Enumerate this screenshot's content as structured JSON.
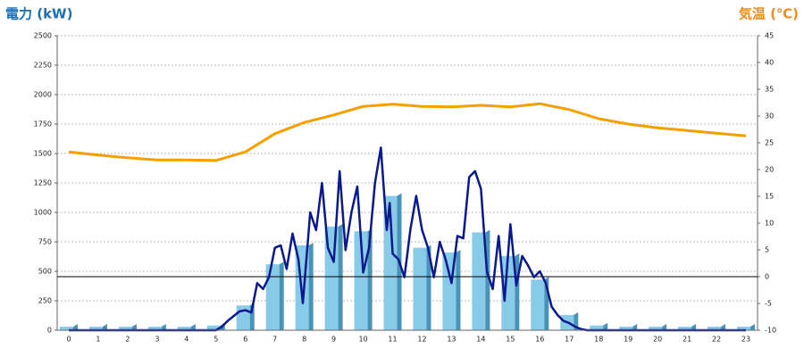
{
  "chart_data": {
    "type": "bar",
    "y_label": "電力 (kW)",
    "y2_label": "気温 (℃)",
    "categories": [
      "0",
      "1",
      "2",
      "3",
      "4",
      "5",
      "6",
      "7",
      "8",
      "9",
      "10",
      "11",
      "12",
      "13",
      "14",
      "15",
      "16",
      "17",
      "18",
      "19",
      "20",
      "21",
      "22",
      "23"
    ],
    "series": [
      {
        "type": "bar",
        "color": "#87cbe8",
        "values": [
          30,
          30,
          30,
          30,
          30,
          40,
          210,
          560,
          720,
          880,
          840,
          1140,
          700,
          660,
          830,
          630,
          430,
          130,
          40,
          30,
          30,
          30,
          30,
          30
        ]
      },
      {
        "type": "line",
        "color": "#0a1a8c",
        "x": [
          0,
          5,
          5.2,
          5.4,
          5.6,
          5.8,
          6,
          6.2,
          6.4,
          6.6,
          6.8,
          7,
          7.2,
          7.4,
          7.6,
          7.8,
          7.95,
          8.2,
          8.4,
          8.6,
          8.8,
          9,
          9.2,
          9.4,
          9.6,
          9.8,
          10,
          10.2,
          10.4,
          10.6,
          10.8,
          10.9,
          11,
          11.2,
          11.4,
          11.6,
          11.8,
          12,
          12.2,
          12.4,
          12.6,
          12.8,
          13,
          13.2,
          13.4,
          13.6,
          13.8,
          14,
          14.2,
          14.4,
          14.6,
          14.8,
          15,
          15.2,
          15.4,
          15.6,
          15.8,
          16,
          16.2,
          16.4,
          16.6,
          16.8,
          17,
          17.2,
          17.4,
          17.6,
          23
        ],
        "values": [
          0,
          0,
          30,
          80,
          120,
          160,
          170,
          150,
          400,
          350,
          450,
          700,
          720,
          520,
          820,
          600,
          230,
          1000,
          850,
          1250,
          700,
          580,
          1350,
          680,
          1000,
          1220,
          490,
          700,
          1250,
          1550,
          850,
          1080,
          650,
          600,
          450,
          850,
          1140,
          850,
          700,
          450,
          750,
          600,
          400,
          800,
          780,
          1300,
          1350,
          1200,
          500,
          350,
          800,
          250,
          900,
          380,
          630,
          550,
          450,
          500,
          400,
          200,
          130,
          80,
          60,
          30,
          10,
          0,
          0
        ]
      },
      {
        "type": "line",
        "axis": "y2",
        "color": "#f5a000",
        "values": [
          23.3,
          22.7,
          22.2,
          21.8,
          21.8,
          21.7,
          23.3,
          26.7,
          28.8,
          30.2,
          31.8,
          32.2,
          31.8,
          31.7,
          32,
          31.7,
          32.3,
          31.2,
          29.5,
          28.5,
          27.8,
          27.3,
          26.8,
          26.3
        ]
      }
    ],
    "ylim": [
      0,
      2500
    ],
    "yticks": [
      0,
      250,
      500,
      750,
      1000,
      1250,
      1500,
      1750,
      2000,
      2250,
      2500
    ],
    "y2lim": [
      -10,
      45
    ],
    "y2ticks": [
      -10,
      -5,
      0,
      5,
      10,
      15,
      20,
      25,
      30,
      35,
      40,
      45
    ],
    "grid": true,
    "reference_lines": [
      {
        "axis": "y2",
        "value": 0
      }
    ]
  }
}
